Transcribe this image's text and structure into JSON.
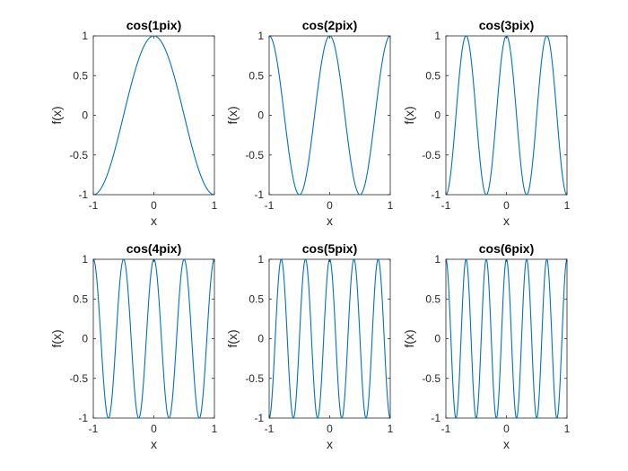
{
  "chart_data": [
    {
      "type": "line",
      "title": "cos(1pix)",
      "xlabel": "x",
      "ylabel": "f(x)",
      "function": "cos(1*pi*x)",
      "frequency": 1,
      "xlim": [
        -1,
        1
      ],
      "ylim": [
        -1,
        1
      ],
      "xticks": [
        -1,
        0,
        1
      ],
      "xtick_labels": [
        "-1",
        "0",
        "1"
      ],
      "yticks": [
        -1,
        -0.5,
        0,
        0.5,
        1
      ],
      "ytick_labels": [
        "-1",
        "-0.5",
        "0",
        "0.5",
        "1"
      ],
      "grid": false,
      "series": [
        {
          "color": "#0072BD"
        }
      ]
    },
    {
      "type": "line",
      "title": "cos(2pix)",
      "xlabel": "x",
      "ylabel": "f(x)",
      "function": "cos(2*pi*x)",
      "frequency": 2,
      "xlim": [
        -1,
        1
      ],
      "ylim": [
        -1,
        1
      ],
      "xticks": [
        -1,
        0,
        1
      ],
      "xtick_labels": [
        "-1",
        "0",
        "1"
      ],
      "yticks": [
        -1,
        -0.5,
        0,
        0.5,
        1
      ],
      "ytick_labels": [
        "-1",
        "-0.5",
        "0",
        "0.5",
        "1"
      ],
      "grid": false,
      "series": [
        {
          "color": "#0072BD"
        }
      ]
    },
    {
      "type": "line",
      "title": "cos(3pix)",
      "xlabel": "x",
      "ylabel": "f(x)",
      "function": "cos(3*pi*x)",
      "frequency": 3,
      "xlim": [
        -1,
        1
      ],
      "ylim": [
        -1,
        1
      ],
      "xticks": [
        -1,
        0,
        1
      ],
      "xtick_labels": [
        "-1",
        "0",
        "1"
      ],
      "yticks": [
        -1,
        -0.5,
        0,
        0.5,
        1
      ],
      "ytick_labels": [
        "-1",
        "-0.5",
        "0",
        "0.5",
        "1"
      ],
      "grid": false,
      "series": [
        {
          "color": "#0072BD"
        }
      ]
    },
    {
      "type": "line",
      "title": "cos(4pix)",
      "xlabel": "x",
      "ylabel": "f(x)",
      "function": "cos(4*pi*x)",
      "frequency": 4,
      "xlim": [
        -1,
        1
      ],
      "ylim": [
        -1,
        1
      ],
      "xticks": [
        -1,
        0,
        1
      ],
      "xtick_labels": [
        "-1",
        "0",
        "1"
      ],
      "yticks": [
        -1,
        -0.5,
        0,
        0.5,
        1
      ],
      "ytick_labels": [
        "-1",
        "-0.5",
        "0",
        "0.5",
        "1"
      ],
      "grid": false,
      "series": [
        {
          "color": "#0072BD"
        }
      ]
    },
    {
      "type": "line",
      "title": "cos(5pix)",
      "xlabel": "x",
      "ylabel": "f(x)",
      "function": "cos(5*pi*x)",
      "frequency": 5,
      "xlim": [
        -1,
        1
      ],
      "ylim": [
        -1,
        1
      ],
      "xticks": [
        -1,
        0,
        1
      ],
      "xtick_labels": [
        "-1",
        "0",
        "1"
      ],
      "yticks": [
        -1,
        -0.5,
        0,
        0.5,
        1
      ],
      "ytick_labels": [
        "-1",
        "-0.5",
        "0",
        "0.5",
        "1"
      ],
      "grid": false,
      "series": [
        {
          "color": "#0072BD"
        }
      ]
    },
    {
      "type": "line",
      "title": "cos(6pix)",
      "xlabel": "x",
      "ylabel": "f(x)",
      "function": "cos(6*pi*x)",
      "frequency": 6,
      "xlim": [
        -1,
        1
      ],
      "ylim": [
        -1,
        1
      ],
      "xticks": [
        -1,
        0,
        1
      ],
      "xtick_labels": [
        "-1",
        "0",
        "1"
      ],
      "yticks": [
        -1,
        -0.5,
        0,
        0.5,
        1
      ],
      "ytick_labels": [
        "-1",
        "-0.5",
        "0",
        "0.5",
        "1"
      ],
      "grid": false,
      "series": [
        {
          "color": "#0072BD"
        }
      ]
    }
  ]
}
